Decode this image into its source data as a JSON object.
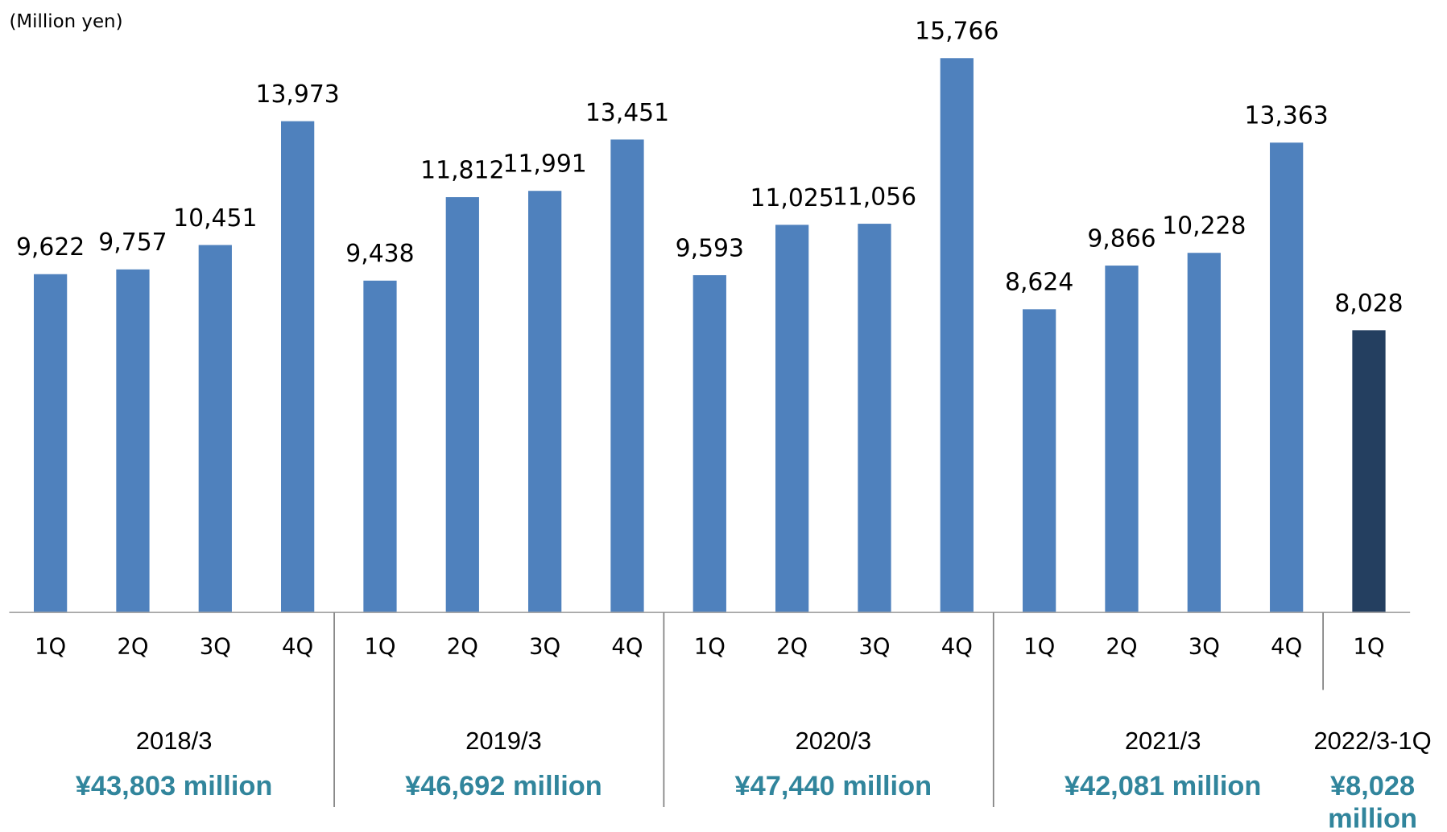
{
  "chart_data": {
    "type": "bar",
    "unit_label": "(Million yen)",
    "categories": [
      "1Q",
      "2Q",
      "3Q",
      "4Q",
      "1Q",
      "2Q",
      "3Q",
      "4Q",
      "1Q",
      "2Q",
      "3Q",
      "4Q",
      "1Q",
      "2Q",
      "3Q",
      "4Q",
      "1Q"
    ],
    "values": [
      9622,
      9757,
      10451,
      13973,
      9438,
      11812,
      11991,
      13451,
      9593,
      11025,
      11056,
      15766,
      8624,
      9866,
      10228,
      13363,
      8028
    ],
    "value_labels": [
      "9,622",
      "9,757",
      "10,451",
      "13,973",
      "9,438",
      "11,812",
      "11,991",
      "13,451",
      "9,593",
      "11,025",
      "11,056",
      "15,766",
      "8,624",
      "9,866",
      "10,228",
      "13,363",
      "8,028"
    ],
    "colors": [
      "#4f81bd",
      "#4f81bd",
      "#4f81bd",
      "#4f81bd",
      "#4f81bd",
      "#4f81bd",
      "#4f81bd",
      "#4f81bd",
      "#4f81bd",
      "#4f81bd",
      "#4f81bd",
      "#4f81bd",
      "#4f81bd",
      "#4f81bd",
      "#4f81bd",
      "#4f81bd",
      "#243f60"
    ],
    "ylim": [
      0,
      17000
    ],
    "groups": [
      {
        "label": "2018/3",
        "total": "¥43,803 million"
      },
      {
        "label": "2019/3",
        "total": "¥46,692 million"
      },
      {
        "label": "2020/3",
        "total": "¥47,440 million"
      },
      {
        "label": "2021/3",
        "total": "¥42,081 million"
      },
      {
        "label": "2022/3-1Q",
        "total": "¥8,028 million"
      }
    ]
  }
}
